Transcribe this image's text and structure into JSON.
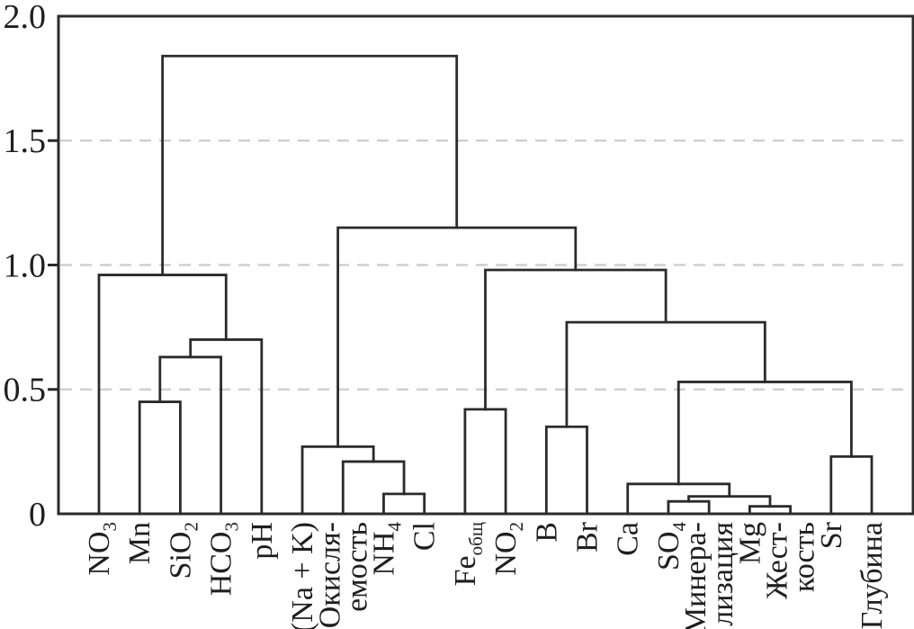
{
  "chart_data": {
    "type": "dendrogram",
    "title": "",
    "xlabel": "",
    "ylabel": "",
    "ylim": [
      0,
      2.0
    ],
    "grid": "horizontal dashed gridlines at labeled ticks (0.5, 1.0, 1.5)",
    "legend": "none",
    "yticks": [
      {
        "label": "2.0",
        "value": 2.0,
        "tick": false
      },
      {
        "label": "1.5",
        "value": 1.5,
        "tick": true
      },
      {
        "label": "1.0",
        "value": 1.0,
        "tick": true
      },
      {
        "label": "0.5",
        "value": 0.5,
        "tick": true
      },
      {
        "label": "0",
        "value": 0.0,
        "tick": false
      }
    ],
    "gridline_values": [
      0.5,
      1.0,
      1.5
    ],
    "leaves": [
      "NO_{3}",
      "Mn",
      "SiO_{2}",
      "HCO_{3}",
      "pH",
      "(Na + K)",
      "Окисля-\nемость",
      "NH_{4}",
      "Cl",
      "Fe_{общ}",
      "NO_{2}",
      "B",
      "Br",
      "Ca",
      "SO_{4}",
      "Минера-\nлизация",
      "Mg",
      "Жест-\nкость",
      "Sr",
      "Глубина"
    ],
    "merges_note": "scipy-style linkage: [childA, childB, height]; ids 0-19 are leaves, id 20+k is merges[k]",
    "merges": [
      [
        1,
        2,
        0.45
      ],
      [
        20,
        3,
        0.63
      ],
      [
        21,
        4,
        0.7
      ],
      [
        0,
        22,
        0.96
      ],
      [
        7,
        8,
        0.08
      ],
      [
        6,
        24,
        0.21
      ],
      [
        5,
        25,
        0.27
      ],
      [
        9,
        10,
        0.42
      ],
      [
        11,
        12,
        0.35
      ],
      [
        14,
        15,
        0.05
      ],
      [
        16,
        17,
        0.03
      ],
      [
        29,
        30,
        0.07
      ],
      [
        13,
        31,
        0.12
      ],
      [
        18,
        19,
        0.23
      ],
      [
        32,
        33,
        0.53
      ],
      [
        28,
        34,
        0.77
      ],
      [
        27,
        35,
        0.98
      ],
      [
        26,
        36,
        1.15
      ],
      [
        23,
        37,
        1.84
      ]
    ]
  },
  "colors": {
    "line": "#2b2b2b",
    "grid": "#cbcbcb",
    "text": "#1f1f1f",
    "background": "#ffffff"
  }
}
